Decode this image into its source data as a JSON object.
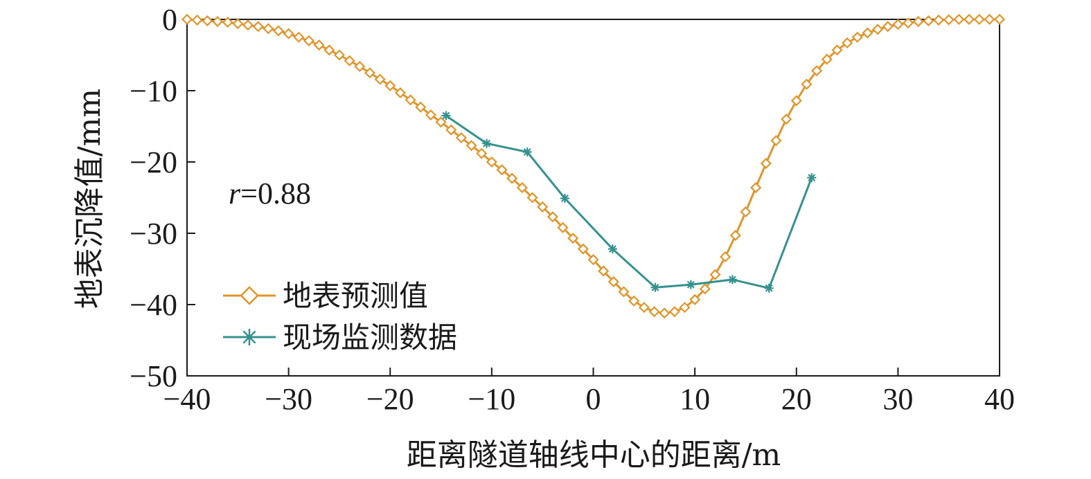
{
  "chart_data": {
    "type": "line",
    "xlabel": "距离隧道轴线中心的距离/m",
    "ylabel": "地表沉降值/mm",
    "xlim": [
      -40,
      40
    ],
    "ylim": [
      -50,
      0
    ],
    "xticks": [
      -40,
      -30,
      -20,
      -10,
      0,
      10,
      20,
      30,
      40
    ],
    "xtick_labels": [
      "−40",
      "−30",
      "−20",
      "−10",
      "0",
      "10",
      "20",
      "30",
      "40"
    ],
    "yticks": [
      0,
      -10,
      -20,
      -30,
      -40,
      -50
    ],
    "ytick_labels": [
      "0",
      "−10",
      "−20",
      "−30",
      "−40",
      "−50"
    ],
    "grid": false,
    "legend_position": "lower-left",
    "annotation": {
      "var": "r",
      "text": "=0.88"
    },
    "series": [
      {
        "name": "地表预测值",
        "color": "#e0952b",
        "marker": "diamond-open",
        "x": [
          -40,
          -39,
          -38,
          -37,
          -36,
          -35,
          -34,
          -33,
          -32,
          -31,
          -30,
          -29,
          -28,
          -27,
          -26,
          -25,
          -24,
          -23,
          -22,
          -21,
          -20,
          -19,
          -18,
          -17,
          -16,
          -15,
          -14,
          -13,
          -12,
          -11,
          -10,
          -9,
          -8,
          -7,
          -6,
          -5,
          -4,
          -3,
          -2,
          -1,
          0,
          1,
          2,
          3,
          4,
          5,
          6,
          7,
          8,
          9,
          10,
          11,
          12,
          13,
          14,
          15,
          16,
          17,
          18,
          19,
          20,
          21,
          22,
          23,
          24,
          25,
          26,
          27,
          28,
          29,
          30,
          31,
          32,
          33,
          34,
          35,
          36,
          37,
          38,
          39,
          40
        ],
        "y": [
          0.0,
          -0.1,
          -0.2,
          -0.3,
          -0.4,
          -0.6,
          -0.8,
          -1.0,
          -1.3,
          -1.6,
          -2.0,
          -2.5,
          -3.0,
          -3.6,
          -4.3,
          -5.0,
          -5.8,
          -6.6,
          -7.5,
          -8.4,
          -9.3,
          -10.3,
          -11.3,
          -12.3,
          -13.4,
          -14.4,
          -15.5,
          -16.6,
          -17.7,
          -18.8,
          -20.0,
          -21.1,
          -22.3,
          -23.6,
          -25.0,
          -26.3,
          -27.7,
          -29.2,
          -30.7,
          -32.2,
          -33.7,
          -35.3,
          -36.8,
          -38.2,
          -39.5,
          -40.4,
          -41.0,
          -41.2,
          -41.0,
          -40.4,
          -39.3,
          -37.8,
          -35.8,
          -33.3,
          -30.3,
          -27.0,
          -23.6,
          -20.2,
          -17.0,
          -14.0,
          -11.4,
          -9.1,
          -7.2,
          -5.6,
          -4.3,
          -3.3,
          -2.5,
          -1.9,
          -1.4,
          -1.0,
          -0.7,
          -0.5,
          -0.3,
          -0.2,
          -0.1,
          -0.05,
          0.0,
          0.0,
          0.0,
          0.0,
          0.0
        ]
      },
      {
        "name": "现场监测数据",
        "color": "#35918d",
        "marker": "asterisk",
        "x": [
          -14.5,
          -10.5,
          -6.5,
          -2.8,
          1.9,
          6.1,
          9.6,
          13.7,
          17.3,
          21.5
        ],
        "y": [
          -13.5,
          -17.4,
          -18.6,
          -25.1,
          -32.2,
          -37.6,
          -37.2,
          -36.5,
          -37.7,
          -22.2
        ]
      }
    ]
  }
}
